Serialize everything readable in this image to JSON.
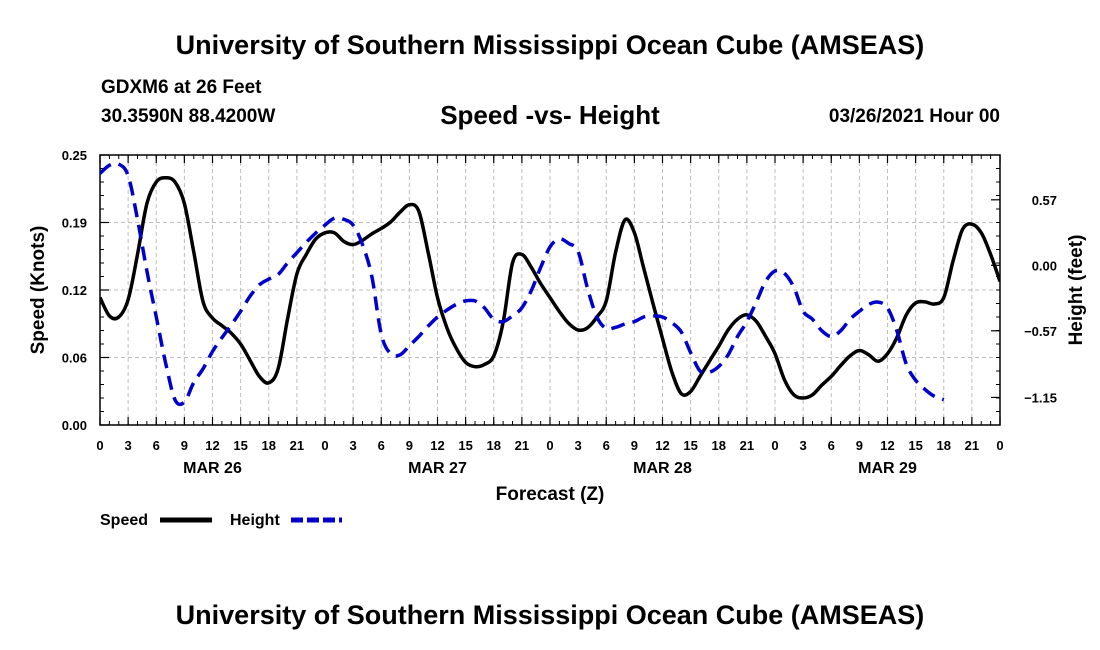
{
  "header": {
    "title": "University of Southern Mississippi Ocean Cube (AMSEAS)",
    "station": "GDXM6 at 26 Feet",
    "coordinates": "30.3590N  88.4200W",
    "chart_title": "Speed -vs- Height",
    "datetime": "03/26/2021 Hour 00"
  },
  "footer": {
    "title": "University of Southern Mississippi Ocean Cube (AMSEAS)"
  },
  "chart_data": {
    "type": "line",
    "title": "Speed -vs- Height",
    "xlabel": "Forecast (Z)",
    "ylabel": "Speed (Knots)",
    "y2label": "Height (feet)",
    "xlim": [
      0,
      96
    ],
    "ylim": [
      0,
      0.25
    ],
    "y2lim": [
      -1.39,
      0.96
    ],
    "grid": true,
    "x_tick_values": [
      0,
      3,
      6,
      9,
      12,
      15,
      18,
      21,
      24,
      27,
      30,
      33,
      36,
      39,
      42,
      45,
      48,
      51,
      54,
      57,
      60,
      63,
      66,
      69,
      72,
      75,
      78,
      81,
      84,
      87,
      90,
      93,
      96
    ],
    "x_tick_labels": [
      "0",
      "3",
      "6",
      "9",
      "12",
      "15",
      "18",
      "21",
      "0",
      "3",
      "6",
      "9",
      "12",
      "15",
      "18",
      "21",
      "0",
      "3",
      "6",
      "9",
      "12",
      "15",
      "18",
      "21",
      "0",
      "3",
      "6",
      "9",
      "12",
      "15",
      "18",
      "21",
      "0"
    ],
    "day_labels": [
      {
        "label": "MAR 26",
        "x": 12
      },
      {
        "label": "MAR 27",
        "x": 36
      },
      {
        "label": "MAR 28",
        "x": 60
      },
      {
        "label": "MAR 29",
        "x": 84
      }
    ],
    "y_ticks": [
      {
        "value": 0.0,
        "label": "0.00"
      },
      {
        "value": 0.0625,
        "label": "0.06"
      },
      {
        "value": 0.125,
        "label": "0.12"
      },
      {
        "value": 0.1875,
        "label": "0.19"
      },
      {
        "value": 0.25,
        "label": "0.25"
      }
    ],
    "y2_ticks": [
      {
        "value": 0.57,
        "label": "0.57"
      },
      {
        "value": 0.0,
        "label": "0.00"
      },
      {
        "value": -0.57,
        "label": "−0.57"
      },
      {
        "value": -1.15,
        "label": "−1.15"
      }
    ],
    "legend": {
      "placement": "bottom-left",
      "entries": [
        {
          "name": "Speed",
          "color": "#000000",
          "style": "solid"
        },
        {
          "name": "Height",
          "color": "#0000cc",
          "style": "dashed"
        }
      ]
    },
    "series": [
      {
        "name": "Speed",
        "axis": "left",
        "color": "#000000",
        "style": "solid",
        "points": [
          [
            0,
            0.118
          ],
          [
            1,
            0.101
          ],
          [
            2,
            0.1
          ],
          [
            3,
            0.116
          ],
          [
            4,
            0.158
          ],
          [
            5,
            0.205
          ],
          [
            6,
            0.225
          ],
          [
            7,
            0.229
          ],
          [
            8,
            0.225
          ],
          [
            9,
            0.205
          ],
          [
            10,
            0.16
          ],
          [
            11,
            0.114
          ],
          [
            12,
            0.099
          ],
          [
            13,
            0.092
          ],
          [
            14,
            0.085
          ],
          [
            15,
            0.075
          ],
          [
            16,
            0.06
          ],
          [
            17,
            0.045
          ],
          [
            18,
            0.039
          ],
          [
            19,
            0.052
          ],
          [
            20,
            0.098
          ],
          [
            21,
            0.14
          ],
          [
            22,
            0.158
          ],
          [
            23,
            0.172
          ],
          [
            24,
            0.178
          ],
          [
            25,
            0.178
          ],
          [
            26,
            0.17
          ],
          [
            27,
            0.167
          ],
          [
            28,
            0.171
          ],
          [
            29,
            0.177
          ],
          [
            30,
            0.182
          ],
          [
            31,
            0.188
          ],
          [
            32,
            0.197
          ],
          [
            33,
            0.204
          ],
          [
            34,
            0.198
          ],
          [
            35,
            0.16
          ],
          [
            36,
            0.118
          ],
          [
            37,
            0.09
          ],
          [
            38,
            0.071
          ],
          [
            39,
            0.058
          ],
          [
            40,
            0.054
          ],
          [
            41,
            0.056
          ],
          [
            42,
            0.064
          ],
          [
            43,
            0.095
          ],
          [
            44,
            0.15
          ],
          [
            45,
            0.158
          ],
          [
            46,
            0.146
          ],
          [
            47,
            0.131
          ],
          [
            48,
            0.118
          ],
          [
            49,
            0.105
          ],
          [
            50,
            0.094
          ],
          [
            51,
            0.088
          ],
          [
            52,
            0.09
          ],
          [
            53,
            0.1
          ],
          [
            54,
            0.115
          ],
          [
            55,
            0.16
          ],
          [
            56,
            0.19
          ],
          [
            57,
            0.178
          ],
          [
            58,
            0.145
          ],
          [
            59,
            0.112
          ],
          [
            60,
            0.08
          ],
          [
            61,
            0.049
          ],
          [
            62,
            0.029
          ],
          [
            63,
            0.031
          ],
          [
            64,
            0.045
          ],
          [
            65,
            0.059
          ],
          [
            66,
            0.073
          ],
          [
            67,
            0.088
          ],
          [
            68,
            0.098
          ],
          [
            69,
            0.102
          ],
          [
            70,
            0.096
          ],
          [
            71,
            0.082
          ],
          [
            72,
            0.066
          ],
          [
            73,
            0.042
          ],
          [
            74,
            0.028
          ],
          [
            75,
            0.025
          ],
          [
            76,
            0.028
          ],
          [
            77,
            0.037
          ],
          [
            78,
            0.045
          ],
          [
            79,
            0.055
          ],
          [
            80,
            0.064
          ],
          [
            81,
            0.069
          ],
          [
            82,
            0.065
          ],
          [
            83,
            0.059
          ],
          [
            84,
            0.066
          ],
          [
            85,
            0.081
          ],
          [
            86,
            0.102
          ],
          [
            87,
            0.113
          ],
          [
            88,
            0.114
          ],
          [
            89,
            0.112
          ],
          [
            90,
            0.118
          ],
          [
            91,
            0.152
          ],
          [
            92,
            0.181
          ],
          [
            93,
            0.186
          ],
          [
            94,
            0.178
          ],
          [
            95,
            0.158
          ],
          [
            96,
            0.133
          ]
        ]
      },
      {
        "name": "Height",
        "axis": "right",
        "color": "#0000cc",
        "style": "dashed",
        "points": [
          [
            0,
            0.8
          ],
          [
            1,
            0.87
          ],
          [
            2,
            0.88
          ],
          [
            3,
            0.78
          ],
          [
            4,
            0.4
          ],
          [
            5,
            -0.05
          ],
          [
            6,
            -0.45
          ],
          [
            7,
            -0.85
          ],
          [
            8,
            -1.17
          ],
          [
            9,
            -1.19
          ],
          [
            10,
            -1.02
          ],
          [
            11,
            -0.9
          ],
          [
            12,
            -0.75
          ],
          [
            13,
            -0.63
          ],
          [
            14,
            -0.52
          ],
          [
            15,
            -0.4
          ],
          [
            16,
            -0.27
          ],
          [
            17,
            -0.17
          ],
          [
            18,
            -0.12
          ],
          [
            19,
            -0.08
          ],
          [
            20,
            0.02
          ],
          [
            21,
            0.11
          ],
          [
            22,
            0.2
          ],
          [
            23,
            0.28
          ],
          [
            24,
            0.35
          ],
          [
            25,
            0.41
          ],
          [
            26,
            0.4
          ],
          [
            27,
            0.35
          ],
          [
            28,
            0.18
          ],
          [
            29,
            -0.1
          ],
          [
            30,
            -0.6
          ],
          [
            31,
            -0.77
          ],
          [
            32,
            -0.78
          ],
          [
            33,
            -0.7
          ],
          [
            34,
            -0.62
          ],
          [
            35,
            -0.53
          ],
          [
            36,
            -0.45
          ],
          [
            37,
            -0.39
          ],
          [
            38,
            -0.34
          ],
          [
            39,
            -0.31
          ],
          [
            40,
            -0.31
          ],
          [
            41,
            -0.37
          ],
          [
            42,
            -0.47
          ],
          [
            43,
            -0.49
          ],
          [
            44,
            -0.44
          ],
          [
            45,
            -0.37
          ],
          [
            46,
            -0.22
          ],
          [
            47,
            -0.02
          ],
          [
            48,
            0.16
          ],
          [
            49,
            0.23
          ],
          [
            50,
            0.19
          ],
          [
            51,
            0.12
          ],
          [
            52,
            -0.2
          ],
          [
            53,
            -0.45
          ],
          [
            54,
            -0.55
          ],
          [
            55,
            -0.54
          ],
          [
            56,
            -0.51
          ],
          [
            57,
            -0.49
          ],
          [
            58,
            -0.45
          ],
          [
            59,
            -0.44
          ],
          [
            60,
            -0.45
          ],
          [
            61,
            -0.5
          ],
          [
            62,
            -0.58
          ],
          [
            63,
            -0.76
          ],
          [
            64,
            -0.92
          ],
          [
            65,
            -0.93
          ],
          [
            66,
            -0.88
          ],
          [
            67,
            -0.78
          ],
          [
            68,
            -0.62
          ],
          [
            69,
            -0.49
          ],
          [
            70,
            -0.32
          ],
          [
            71,
            -0.14
          ],
          [
            72,
            -0.05
          ],
          [
            73,
            -0.07
          ],
          [
            74,
            -0.19
          ],
          [
            75,
            -0.4
          ],
          [
            76,
            -0.47
          ],
          [
            77,
            -0.57
          ],
          [
            78,
            -0.62
          ],
          [
            79,
            -0.57
          ],
          [
            80,
            -0.47
          ],
          [
            81,
            -0.4
          ],
          [
            82,
            -0.34
          ],
          [
            83,
            -0.32
          ],
          [
            84,
            -0.37
          ],
          [
            85,
            -0.57
          ],
          [
            86,
            -0.86
          ],
          [
            87,
            -1.0
          ],
          [
            88,
            -1.08
          ],
          [
            89,
            -1.14
          ],
          [
            90,
            -1.17
          ]
        ]
      }
    ]
  }
}
